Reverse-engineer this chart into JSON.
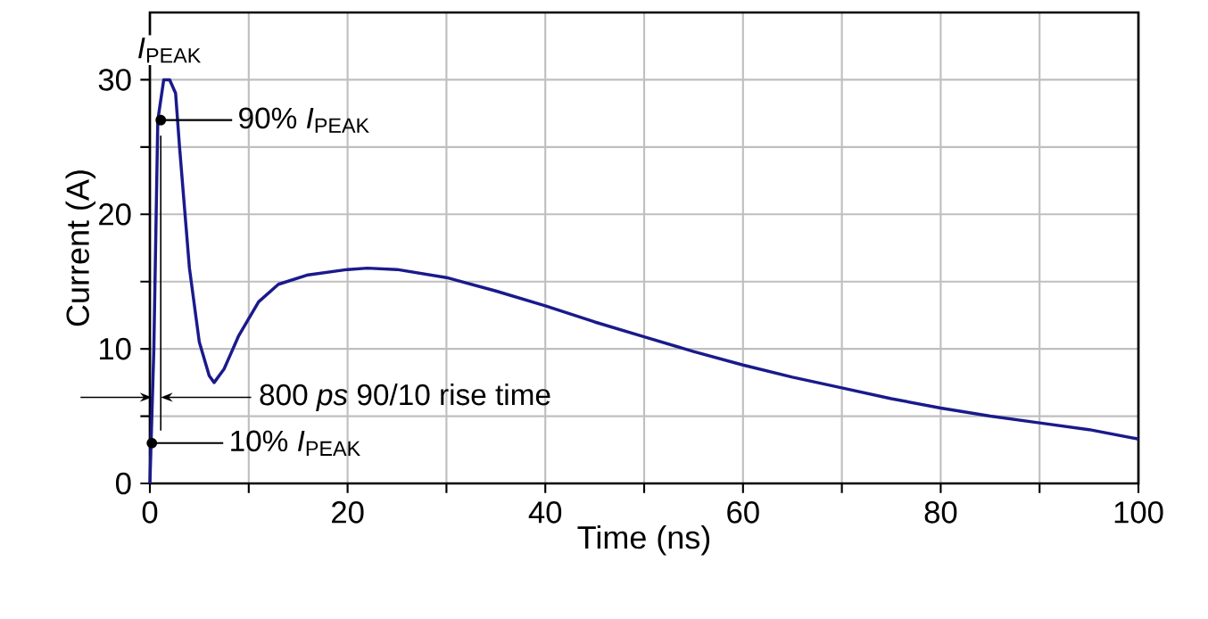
{
  "chart_data": {
    "type": "line",
    "xlabel": "Time (ns)",
    "ylabel": "Current (A)",
    "x": [
      0,
      0.4,
      0.8,
      1.4,
      2,
      2.6,
      3,
      4,
      5,
      6,
      6.5,
      7.5,
      9,
      11,
      13,
      16,
      20,
      22,
      25,
      30,
      35,
      40,
      45,
      50,
      55,
      60,
      65,
      70,
      75,
      80,
      85,
      90,
      95,
      100
    ],
    "series": [
      {
        "color": "#1a1a8c",
        "values": [
          0,
          10,
          27,
          30,
          30,
          29,
          25,
          16,
          10.5,
          8,
          7.5,
          8.5,
          11,
          13.5,
          14.8,
          15.5,
          15.9,
          16,
          15.9,
          15.3,
          14.3,
          13.2,
          12.0,
          10.9,
          9.8,
          8.8,
          7.9,
          7.1,
          6.3,
          5.6,
          5.0,
          4.5,
          4.0,
          3.3
        ]
      }
    ],
    "xlim": [
      0,
      100
    ],
    "ylim": [
      0,
      35
    ],
    "xticks": [
      0,
      {
        "value": 10,
        "label": null
      },
      20,
      {
        "value": 30,
        "label": null
      },
      40,
      {
        "value": 50,
        "label": null
      },
      60,
      {
        "value": 70,
        "label": null
      },
      80,
      {
        "value": 90,
        "label": null
      },
      100
    ],
    "yticks": [
      0,
      {
        "value": 5,
        "label": null
      },
      10,
      {
        "value": 15,
        "label": null
      },
      20,
      {
        "value": 25,
        "label": null
      },
      30
    ],
    "ref_lines": [
      {
        "axis": "x",
        "value": 1.1,
        "color": "#000000"
      }
    ],
    "grid": true,
    "marker": "none",
    "line_style": "solid",
    "annotations": [
      {
        "text": "*I*$_{PEAK}$",
        "x": 2,
        "y": 30
      },
      {
        "text": "90% *I*$_{PEAK}$",
        "x": 1.1,
        "y": 27
      },
      {
        "text": "10% *I*$_{PEAK}$",
        "x": 0.2,
        "y": 3
      },
      {
        "text": "800 *ps* 90/10 rise time",
        "x": 1.1,
        "y": 6.4
      }
    ]
  }
}
